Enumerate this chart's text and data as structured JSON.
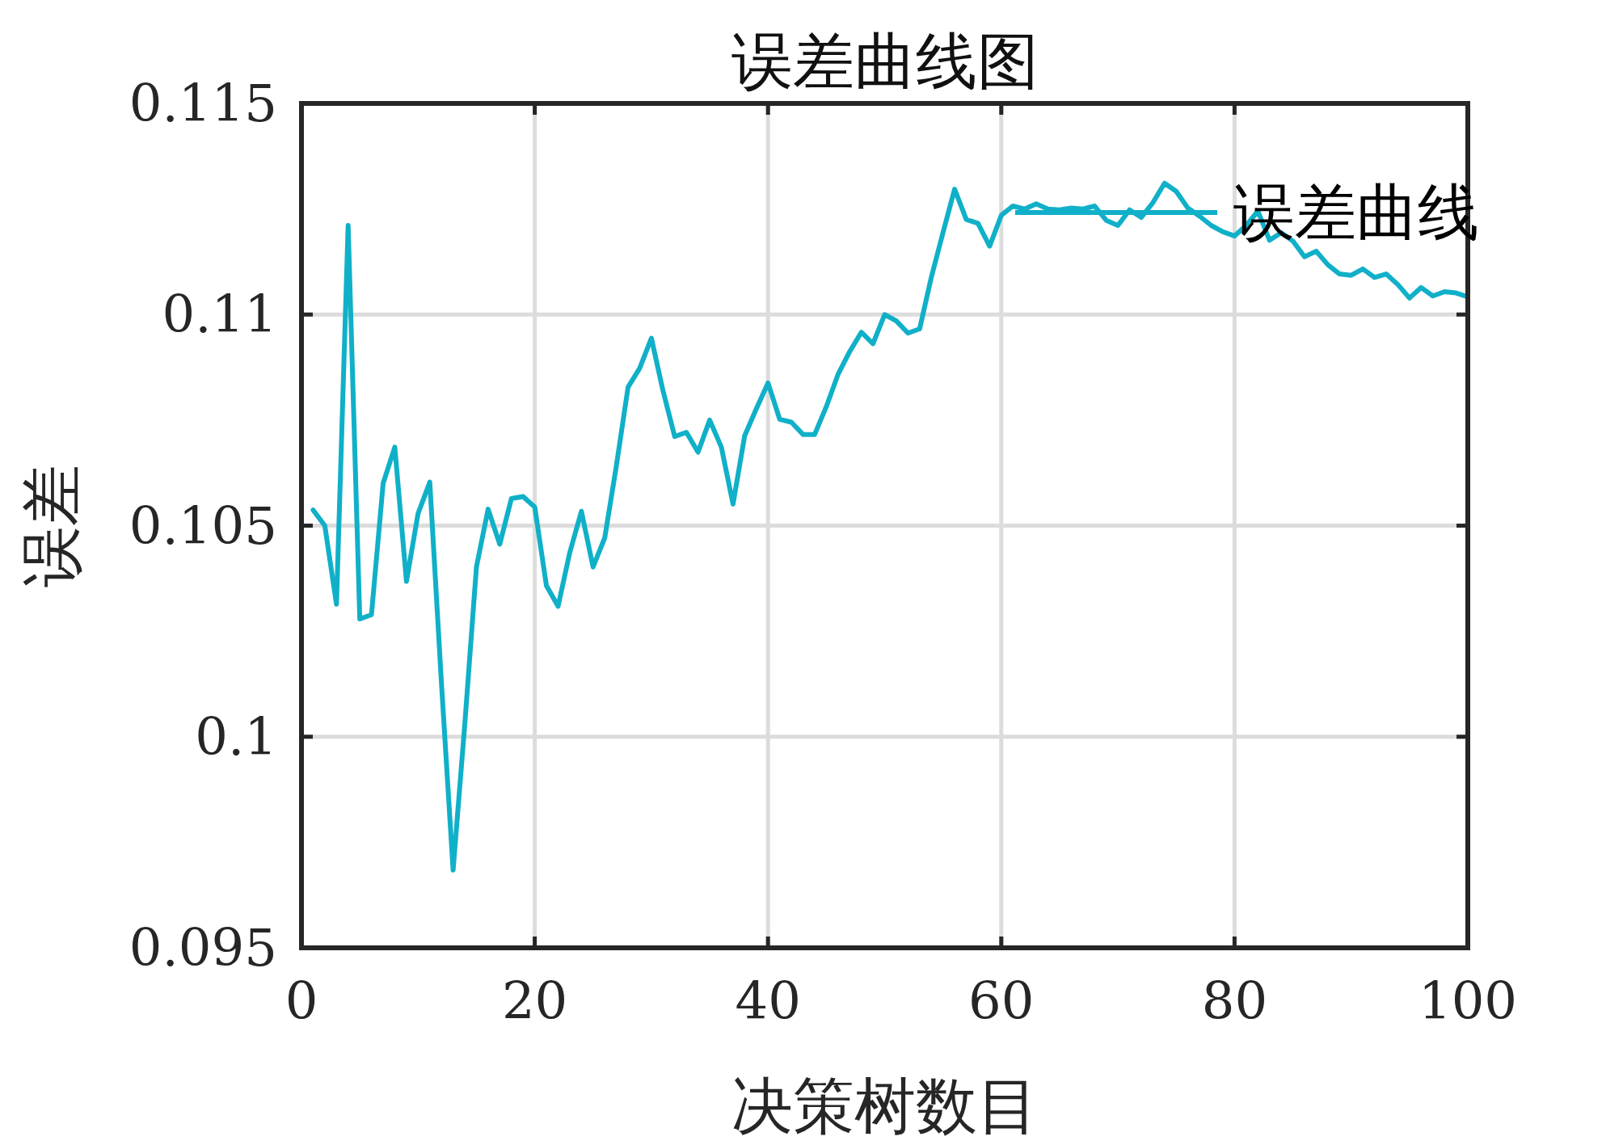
{
  "chart_data": {
    "type": "line",
    "title": "误差曲线图",
    "xlabel": "决策树数目",
    "ylabel": "误差",
    "xlim": [
      0,
      100
    ],
    "xticks": [
      0,
      20,
      40,
      60,
      80,
      100
    ],
    "ylim": [
      0.095,
      0.115
    ],
    "yticks": [
      0.095,
      0.1,
      0.105,
      0.11,
      0.115
    ],
    "grid": true,
    "legend": "top right",
    "line_style": "solid",
    "marker": "none",
    "series": [
      {
        "name": "误差曲线",
        "color": "#10b0c8",
        "x": [
          1,
          2,
          3,
          4,
          5,
          6,
          7,
          8,
          9,
          10,
          11,
          12,
          13,
          14,
          15,
          16,
          17,
          18,
          19,
          20,
          21,
          22,
          23,
          24,
          25,
          26,
          27,
          28,
          29,
          30,
          31,
          32,
          33,
          34,
          35,
          36,
          37,
          38,
          39,
          40,
          41,
          42,
          43,
          44,
          45,
          46,
          47,
          48,
          49,
          50,
          51,
          52,
          53,
          54,
          55,
          56,
          57,
          58,
          59,
          60,
          61,
          62,
          63,
          64,
          65,
          66,
          67,
          68,
          69,
          70,
          71,
          72,
          73,
          74,
          75,
          76,
          77,
          78,
          79,
          80,
          81,
          82,
          83,
          84,
          85,
          86,
          87,
          88,
          89,
          90,
          91,
          92,
          93,
          94,
          95,
          96,
          97,
          98,
          99,
          100
        ],
        "values": [
          0.10537,
          0.105,
          0.10314,
          0.11211,
          0.10279,
          0.10289,
          0.106,
          0.10686,
          0.10368,
          0.10529,
          0.10603,
          0.10127,
          0.09684,
          0.10029,
          0.10402,
          0.10539,
          0.10456,
          0.10564,
          0.10569,
          0.10544,
          0.10358,
          0.10309,
          0.10436,
          0.10534,
          0.10402,
          0.10471,
          0.10642,
          0.10828,
          0.10873,
          0.10944,
          0.10819,
          0.10711,
          0.10721,
          0.10674,
          0.1075,
          0.10686,
          0.10551,
          0.10713,
          0.10777,
          0.10838,
          0.10752,
          0.10745,
          0.10716,
          0.10716,
          0.10782,
          0.10858,
          0.10912,
          0.10958,
          0.10931,
          0.11,
          0.10985,
          0.10956,
          0.10966,
          0.11088,
          0.11194,
          0.11297,
          0.11225,
          0.11216,
          0.11162,
          0.11235,
          0.11257,
          0.1125,
          0.11262,
          0.1125,
          0.11248,
          0.11252,
          0.1125,
          0.11257,
          0.11223,
          0.11211,
          0.11248,
          0.1123,
          0.11265,
          0.11311,
          0.11292,
          0.11252,
          0.11233,
          0.11211,
          0.11196,
          0.11186,
          0.11211,
          0.11245,
          0.11176,
          0.11194,
          0.11174,
          0.11137,
          0.1115,
          0.11118,
          0.11096,
          0.11093,
          0.11108,
          0.11088,
          0.11096,
          0.11071,
          0.11039,
          0.11064,
          0.11044,
          0.11054,
          0.11051,
          0.11042
        ]
      }
    ]
  }
}
